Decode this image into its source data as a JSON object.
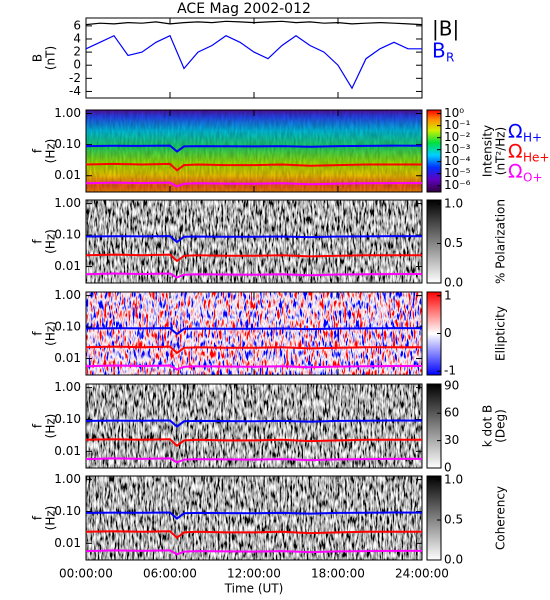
{
  "chart_data": [
    {
      "type": "line",
      "title": "ACE Mag 2002-012",
      "ylabel": [
        "B",
        "(nT)"
      ],
      "xlim": [
        0,
        24
      ],
      "ylim": [
        -5,
        7.2
      ],
      "yticks": [
        -4,
        -2,
        0,
        2,
        4,
        6
      ],
      "x": [
        0,
        1,
        2,
        3,
        4,
        5,
        6,
        7,
        8,
        9,
        10,
        11,
        12,
        13,
        14,
        15,
        16,
        17,
        18,
        19,
        20,
        21,
        22,
        23,
        24
      ],
      "series": [
        {
          "name": "|B|",
          "color": "#000000",
          "values": [
            6.2,
            6.4,
            6.3,
            6.5,
            6.4,
            6.6,
            6.3,
            6.5,
            6.6,
            6.5,
            6.7,
            6.6,
            6.5,
            6.6,
            6.7,
            6.5,
            6.6,
            6.4,
            6.5,
            6.3,
            6.4,
            6.5,
            6.4,
            6.3,
            6.2
          ]
        },
        {
          "name": "B",
          "subscript": "R",
          "color": "#0000ff",
          "values": [
            2.5,
            3.5,
            4.5,
            1.5,
            2,
            3.5,
            4.5,
            -0.5,
            2,
            3,
            4.5,
            3.5,
            2,
            1,
            3,
            4.5,
            3,
            2,
            0,
            -3.5,
            1,
            2.5,
            3.5,
            2.5,
            2.5
          ]
        }
      ]
    },
    {
      "type": "spectrogram",
      "ylabel": [
        "f",
        "(Hz)"
      ],
      "ylog": true,
      "xlim": [
        0,
        24
      ],
      "ylim": [
        0.003,
        1.3
      ],
      "yticks": [
        {
          "value": 1,
          "label": "1.00"
        },
        {
          "value": 0.1,
          "label": "0.10"
        },
        {
          "value": 0.01,
          "label": "0.01"
        }
      ],
      "colormap": "rainbow",
      "colorbar": {
        "label": [
          "Intensity",
          "(nT²/Hz)"
        ],
        "log": true,
        "lim": [
          3e-07,
          2
        ],
        "ticks": [
          {
            "value": 1,
            "label": "10⁰"
          },
          {
            "value": 0.1,
            "label": "10⁻¹"
          },
          {
            "value": 0.01,
            "label": "10⁻²"
          },
          {
            "value": 0.001,
            "label": "10⁻³"
          },
          {
            "value": 0.0001,
            "label": "10⁻⁴"
          },
          {
            "value": 1e-05,
            "label": "10⁻⁵"
          },
          {
            "value": 1e-06,
            "label": "10⁻⁶"
          }
        ]
      },
      "x": [
        0,
        2,
        4,
        6,
        6.5,
        7,
        8,
        10,
        12,
        14,
        16,
        18,
        20,
        22,
        24
      ],
      "series": [
        {
          "name": "Ω",
          "subscript": "H+",
          "color": "#0000ff",
          "values": [
            0.09,
            0.092,
            0.091,
            0.093,
            0.06,
            0.088,
            0.09,
            0.089,
            0.088,
            0.09,
            0.086,
            0.09,
            0.091,
            0.093,
            0.092
          ]
        },
        {
          "name": "Ω",
          "subscript": "He+",
          "color": "#ff0000",
          "values": [
            0.023,
            0.024,
            0.023,
            0.024,
            0.015,
            0.022,
            0.023,
            0.022,
            0.022,
            0.023,
            0.021,
            0.022,
            0.023,
            0.023,
            0.023
          ]
        },
        {
          "name": "Ω",
          "subscript": "O+",
          "color": "#ff00ff",
          "values": [
            0.0057,
            0.006,
            0.0058,
            0.006,
            0.0045,
            0.0055,
            0.0057,
            0.0056,
            0.0055,
            0.0057,
            0.0053,
            0.0056,
            0.0057,
            0.0058,
            0.0058
          ]
        }
      ]
    },
    {
      "type": "spectrogram",
      "ylabel": [
        "f",
        "(Hz)"
      ],
      "ylog": true,
      "xlim": [
        0,
        24
      ],
      "ylim": [
        0.003,
        1.3
      ],
      "yticks": [
        {
          "value": 1,
          "label": "1.00"
        },
        {
          "value": 0.1,
          "label": "0.10"
        },
        {
          "value": 0.01,
          "label": "0.01"
        }
      ],
      "colormap": "gray",
      "colorbar": {
        "label": [
          "% Polarization"
        ],
        "log": false,
        "lim": [
          0,
          1.05
        ],
        "ticks": [
          {
            "value": 0,
            "label": "0.0"
          },
          {
            "value": 0.5,
            "label": "0.5"
          },
          {
            "value": 1,
            "label": "1.0"
          }
        ]
      },
      "x": [
        0,
        2,
        4,
        6,
        6.5,
        7,
        8,
        10,
        12,
        14,
        16,
        18,
        20,
        22,
        24
      ],
      "series": [
        {
          "color": "#0000ff",
          "values": [
            0.09,
            0.092,
            0.091,
            0.093,
            0.06,
            0.088,
            0.09,
            0.089,
            0.088,
            0.09,
            0.086,
            0.09,
            0.091,
            0.093,
            0.092
          ]
        },
        {
          "color": "#ff0000",
          "values": [
            0.023,
            0.024,
            0.023,
            0.024,
            0.015,
            0.022,
            0.023,
            0.022,
            0.022,
            0.023,
            0.021,
            0.022,
            0.023,
            0.023,
            0.023
          ]
        },
        {
          "color": "#ff00ff",
          "values": [
            0.0057,
            0.006,
            0.0058,
            0.006,
            0.0045,
            0.0055,
            0.0057,
            0.0056,
            0.0055,
            0.0057,
            0.0053,
            0.0056,
            0.0057,
            0.0058,
            0.0058
          ]
        }
      ]
    },
    {
      "type": "spectrogram",
      "ylabel": [
        "f",
        "(Hz)"
      ],
      "ylog": true,
      "xlim": [
        0,
        24
      ],
      "ylim": [
        0.003,
        1.3
      ],
      "yticks": [
        {
          "value": 1,
          "label": "1.00"
        },
        {
          "value": 0.1,
          "label": "0.10"
        },
        {
          "value": 0.01,
          "label": "0.01"
        }
      ],
      "colormap": "bwr",
      "colorbar": {
        "label": [
          "Ellipticity"
        ],
        "log": false,
        "lim": [
          -1.1,
          1.1
        ],
        "ticks": [
          -1,
          0,
          1
        ]
      },
      "x": [
        0,
        2,
        4,
        6,
        6.5,
        7,
        8,
        10,
        12,
        14,
        16,
        18,
        20,
        22,
        24
      ],
      "series": [
        {
          "color": "#0000ff",
          "values": [
            0.09,
            0.092,
            0.091,
            0.093,
            0.06,
            0.088,
            0.09,
            0.089,
            0.088,
            0.09,
            0.086,
            0.09,
            0.091,
            0.093,
            0.092
          ]
        },
        {
          "color": "#ff0000",
          "values": [
            0.023,
            0.024,
            0.023,
            0.024,
            0.015,
            0.022,
            0.023,
            0.022,
            0.022,
            0.023,
            0.021,
            0.022,
            0.023,
            0.023,
            0.023
          ]
        },
        {
          "color": "#ff00ff",
          "values": [
            0.0057,
            0.006,
            0.0058,
            0.006,
            0.0045,
            0.0055,
            0.0057,
            0.0056,
            0.0055,
            0.0057,
            0.0053,
            0.0056,
            0.0057,
            0.0058,
            0.0058
          ]
        }
      ]
    },
    {
      "type": "spectrogram",
      "ylabel": [
        "f",
        "(Hz)"
      ],
      "ylog": true,
      "xlim": [
        0,
        24
      ],
      "ylim": [
        0.003,
        1.3
      ],
      "yticks": [
        {
          "value": 1,
          "label": "1.00"
        },
        {
          "value": 0.1,
          "label": "0.10"
        },
        {
          "value": 0.01,
          "label": "0.01"
        }
      ],
      "colormap": "gray",
      "colorbar": {
        "label": [
          "k dot B",
          "(Deg)"
        ],
        "log": false,
        "lim": [
          0,
          92
        ],
        "ticks": [
          0,
          30,
          60,
          90
        ]
      },
      "x": [
        0,
        2,
        4,
        6,
        6.5,
        7,
        8,
        10,
        12,
        14,
        16,
        18,
        20,
        22,
        24
      ],
      "series": [
        {
          "color": "#0000ff",
          "values": [
            0.09,
            0.092,
            0.091,
            0.093,
            0.06,
            0.088,
            0.09,
            0.089,
            0.088,
            0.09,
            0.086,
            0.09,
            0.091,
            0.093,
            0.092
          ]
        },
        {
          "color": "#ff0000",
          "values": [
            0.023,
            0.024,
            0.023,
            0.024,
            0.015,
            0.022,
            0.023,
            0.022,
            0.022,
            0.023,
            0.021,
            0.022,
            0.023,
            0.023,
            0.023
          ]
        },
        {
          "color": "#ff00ff",
          "values": [
            0.0057,
            0.006,
            0.0058,
            0.006,
            0.0045,
            0.0055,
            0.0057,
            0.0056,
            0.0055,
            0.0057,
            0.0053,
            0.0056,
            0.0057,
            0.0058,
            0.0058
          ]
        }
      ]
    },
    {
      "type": "spectrogram",
      "ylabel": [
        "f",
        "(Hz)"
      ],
      "ylog": true,
      "xlim": [
        0,
        24
      ],
      "ylim": [
        0.003,
        1.3
      ],
      "yticks": [
        {
          "value": 1,
          "label": "1.00"
        },
        {
          "value": 0.1,
          "label": "0.10"
        },
        {
          "value": 0.01,
          "label": "0.01"
        }
      ],
      "colormap": "gray",
      "colorbar": {
        "label": [
          "Coherency"
        ],
        "log": false,
        "lim": [
          0,
          1.05
        ],
        "ticks": [
          {
            "value": 0,
            "label": "0.0"
          },
          {
            "value": 0.5,
            "label": "0.5"
          },
          {
            "value": 1,
            "label": "1.0"
          }
        ]
      },
      "xlabel": "Time (UT)",
      "xticks": [
        {
          "value": 0,
          "label": "00:00:00"
        },
        {
          "value": 6,
          "label": "06:00:00"
        },
        {
          "value": 12,
          "label": "12:00:00"
        },
        {
          "value": 18,
          "label": "18:00:00"
        },
        {
          "value": 24,
          "label": "24:00:00"
        }
      ],
      "x": [
        0,
        2,
        4,
        6,
        6.5,
        7,
        8,
        10,
        12,
        14,
        16,
        18,
        20,
        22,
        24
      ],
      "series": [
        {
          "color": "#0000ff",
          "values": [
            0.09,
            0.092,
            0.091,
            0.093,
            0.06,
            0.088,
            0.09,
            0.089,
            0.088,
            0.09,
            0.086,
            0.09,
            0.091,
            0.093,
            0.092
          ]
        },
        {
          "color": "#ff0000",
          "values": [
            0.023,
            0.024,
            0.023,
            0.024,
            0.015,
            0.022,
            0.023,
            0.022,
            0.022,
            0.023,
            0.021,
            0.022,
            0.023,
            0.023,
            0.023
          ]
        },
        {
          "color": "#ff00ff",
          "values": [
            0.0057,
            0.006,
            0.0058,
            0.006,
            0.0045,
            0.0055,
            0.0057,
            0.0056,
            0.0055,
            0.0057,
            0.0053,
            0.0056,
            0.0057,
            0.0058,
            0.0058
          ]
        }
      ]
    }
  ]
}
